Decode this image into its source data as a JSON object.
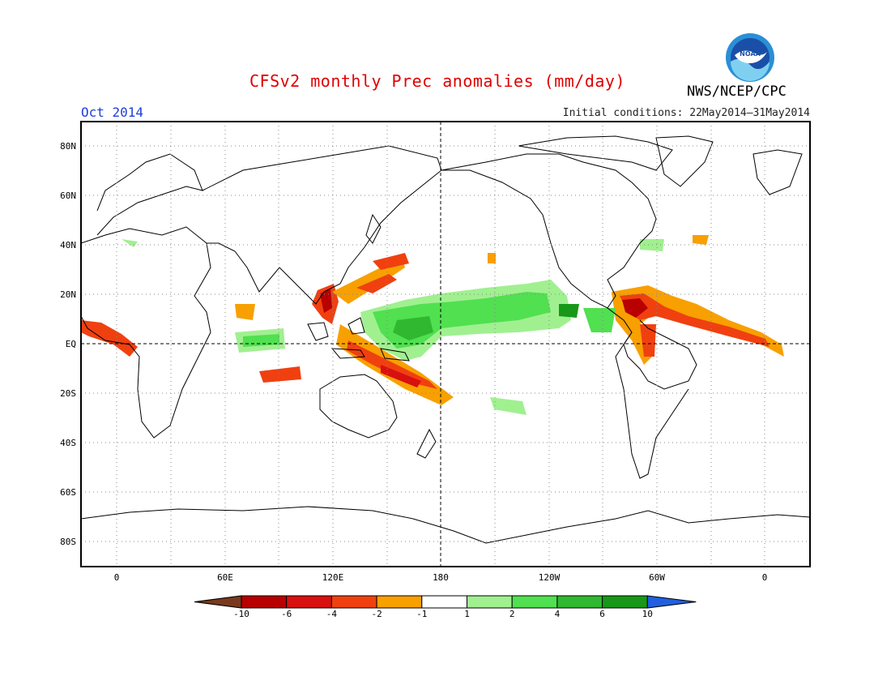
{
  "title": "CFSv2 monthly Prec anomalies (mm/day)",
  "valid_month": "Oct 2014",
  "initial_conditions": "Initial conditions: 22May2014–31May2014",
  "agency": "NWS/NCEP/CPC",
  "logo_text": "NOAA",
  "lat_ticks": [
    "80N",
    "60N",
    "40N",
    "20N",
    "EQ",
    "20S",
    "40S",
    "60S",
    "80S"
  ],
  "lon_ticks": [
    "0",
    "60E",
    "120E",
    "180",
    "120W",
    "60W",
    "0"
  ],
  "colorbar": {
    "labels": [
      "-10",
      "-6",
      "-4",
      "-2",
      "-1",
      "1",
      "2",
      "4",
      "6",
      "10"
    ],
    "colors": [
      "#7a3a1e",
      "#b80000",
      "#d81010",
      "#f04010",
      "#f8a000",
      "#ffffff",
      "#a0f090",
      "#50e050",
      "#30b830",
      "#189818",
      "#2060e0"
    ]
  },
  "colors": {
    "title": "#e00000",
    "month": "#2040d8"
  }
}
